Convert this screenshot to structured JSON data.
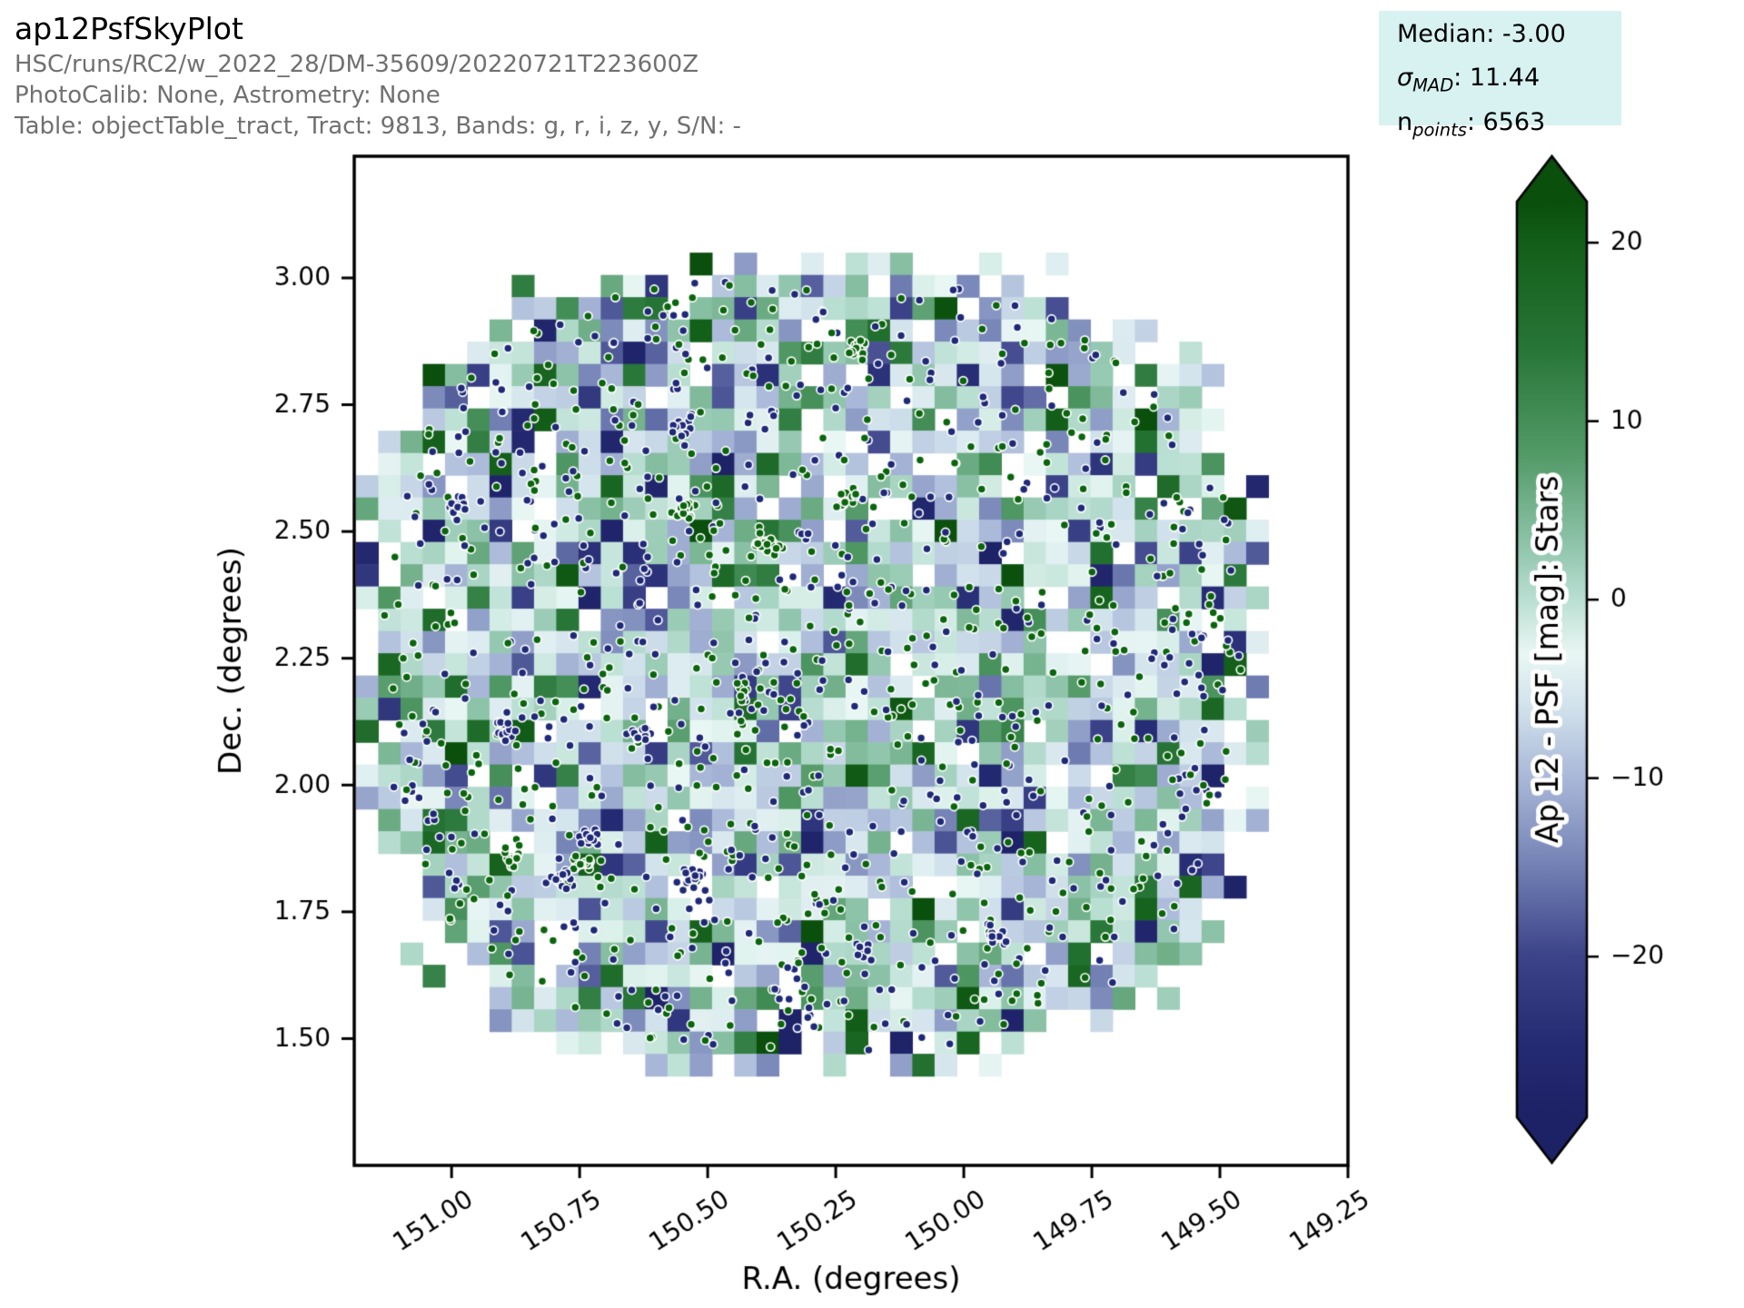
{
  "header": {
    "title": "ap12PsfSkyPlot",
    "line1": "HSC/runs/RC2/w_2022_28/DM-35609/20220721T223600Z",
    "line2": "PhotoCalib: None, Astrometry: None",
    "line3": "Table: objectTable_tract, Tract: 9813, Bands: g, r, i, z, y, S/N: -"
  },
  "stats": {
    "background": "#d7f2f1",
    "lines": [
      {
        "main": "Median",
        "sub": "",
        "value": ": -3.00"
      },
      {
        "main": "σ",
        "sub": "MAD",
        "value": ": 11.44"
      },
      {
        "main": "n",
        "sub": "points",
        "value": ": 6563"
      }
    ]
  },
  "chart_data": {
    "type": "heatmap",
    "subtype": "sky plot: binned 2D histogram with scatter overlay of stars",
    "title": "ap12PsfSkyPlot",
    "xlabel": "R.A. (degrees)",
    "ylabel": "Dec. (degrees)",
    "x_tick_values": [
      151.0,
      150.75,
      150.5,
      150.25,
      150.0,
      149.75,
      149.5,
      149.25
    ],
    "x_tick_labels": [
      "151.00",
      "150.75",
      "150.50",
      "150.25",
      "150.00",
      "149.75",
      "149.50",
      "149.25"
    ],
    "y_tick_values": [
      3.0,
      2.75,
      2.5,
      2.25,
      2.0,
      1.75,
      1.5
    ],
    "y_tick_labels": [
      "3.00",
      "2.75",
      "2.50",
      "2.25",
      "2.00",
      "1.75",
      "1.50"
    ],
    "xlim": [
      151.19,
      149.25
    ],
    "ylim": [
      1.25,
      3.24
    ],
    "x_axis_inverted": true,
    "grid": false,
    "statistics": {
      "median": -3.0,
      "sigma_mad": 11.44,
      "n_points": 6563
    },
    "colorbar": {
      "label": "Ap 12 - PSF [mag]: Stars",
      "tick_values": [
        20,
        10,
        0,
        -10,
        -20
      ],
      "tick_labels": [
        "20",
        "10",
        "0",
        "−10",
        "−20"
      ],
      "vmax": 22.3,
      "vmin": -29.0,
      "extend": "both",
      "color_stops": [
        [
          22.3,
          "#0a4f0c"
        ],
        [
          20,
          "#135f19"
        ],
        [
          14,
          "#287638"
        ],
        [
          8,
          "#549b69"
        ],
        [
          3,
          "#90c5ac"
        ],
        [
          0,
          "#badfd3"
        ],
        [
          -3,
          "#e9f7f4"
        ],
        [
          -6,
          "#d2e2ec"
        ],
        [
          -10,
          "#a9b8d8"
        ],
        [
          -15,
          "#7280b4"
        ],
        [
          -20,
          "#3c4389"
        ],
        [
          -25,
          "#252b72"
        ],
        [
          -29,
          "#1d2166"
        ]
      ]
    },
    "scatter": {
      "point_colors": [
        "#0a650d",
        "#1e2a78"
      ],
      "point_edge_color": "#ffffff",
      "point_radius_px": 4.6
    },
    "footprint": {
      "ra_center": 150.296,
      "dec_center": 2.238,
      "ra_half_extent": 0.89,
      "dec_half_extent": 0.81,
      "shape": "superellipse",
      "exponent": 2.7
    },
    "bins": {
      "bin_size_px": 24.5,
      "cols": 41,
      "rows": 37,
      "hole_fraction": 0.1
    },
    "procedural": {
      "seed": 98131,
      "n_single_points": 1400,
      "n_clusters": 16,
      "note": "per-bin values and point positions are a seeded stochastic reconstruction of the screenshot texture"
    }
  }
}
